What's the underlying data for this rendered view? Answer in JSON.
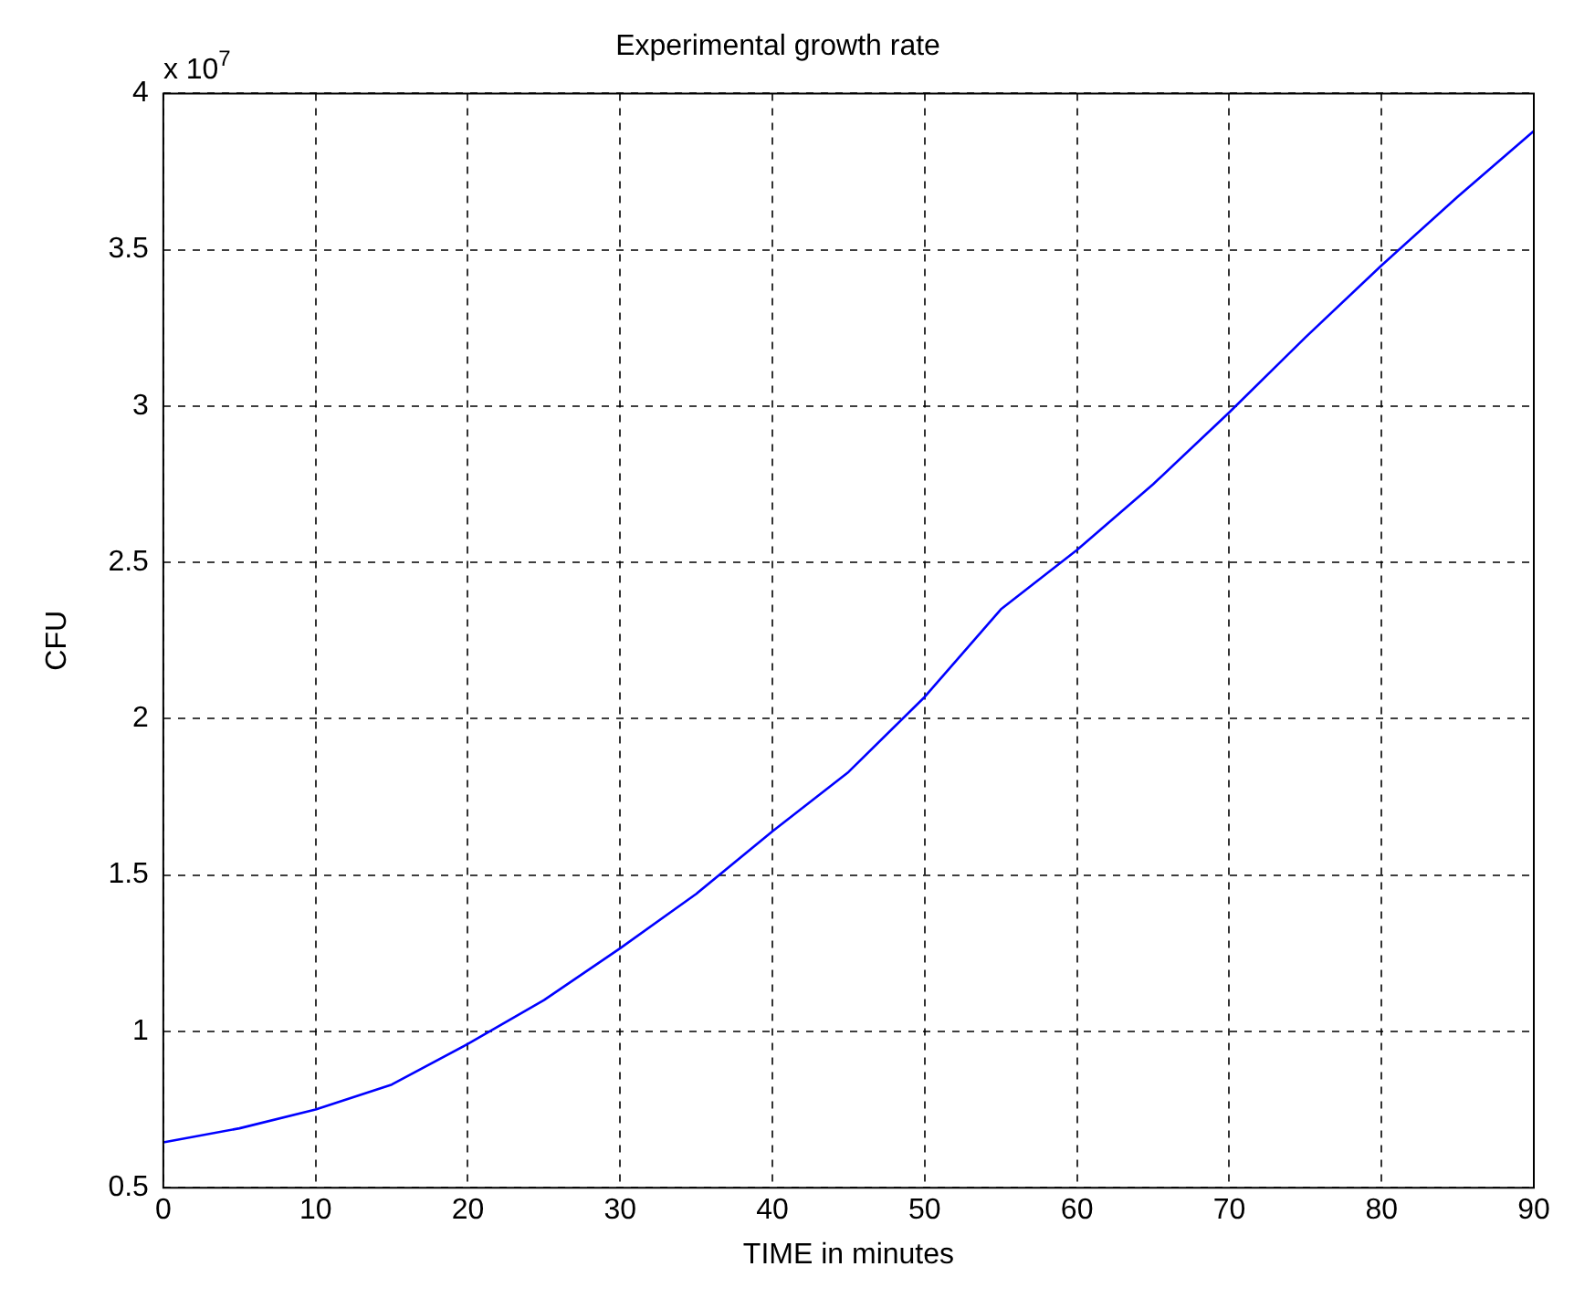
{
  "chart_data": {
    "type": "line",
    "title": "Experimental growth rate",
    "xlabel": "TIME in minutes",
    "ylabel": "CFU",
    "annotations": [
      "x 10$^{7}$"
    ],
    "x": [
      0,
      5,
      10,
      15,
      20,
      25,
      30,
      35,
      40,
      45,
      50,
      55,
      60,
      65,
      70,
      75,
      80,
      85,
      90
    ],
    "series": [
      {
        "color": "#0000ff",
        "values": [
          0.645,
          0.69,
          0.75,
          0.83,
          0.96,
          1.1,
          1.266,
          1.44,
          1.64,
          1.83,
          2.07,
          2.35,
          2.54,
          2.75,
          2.98,
          3.22,
          3.45,
          3.67,
          3.88
        ]
      }
    ],
    "xlim": [
      0,
      90
    ],
    "xticks": [
      0,
      10,
      20,
      30,
      40,
      50,
      60,
      70,
      80,
      90
    ],
    "ylim": [
      0.5,
      4
    ],
    "yticks": [
      0.5,
      1,
      1.5,
      2,
      2.5,
      3,
      3.5,
      4
    ],
    "grid": true,
    "line_style": "solid",
    "marker": "none",
    "legend": false
  }
}
